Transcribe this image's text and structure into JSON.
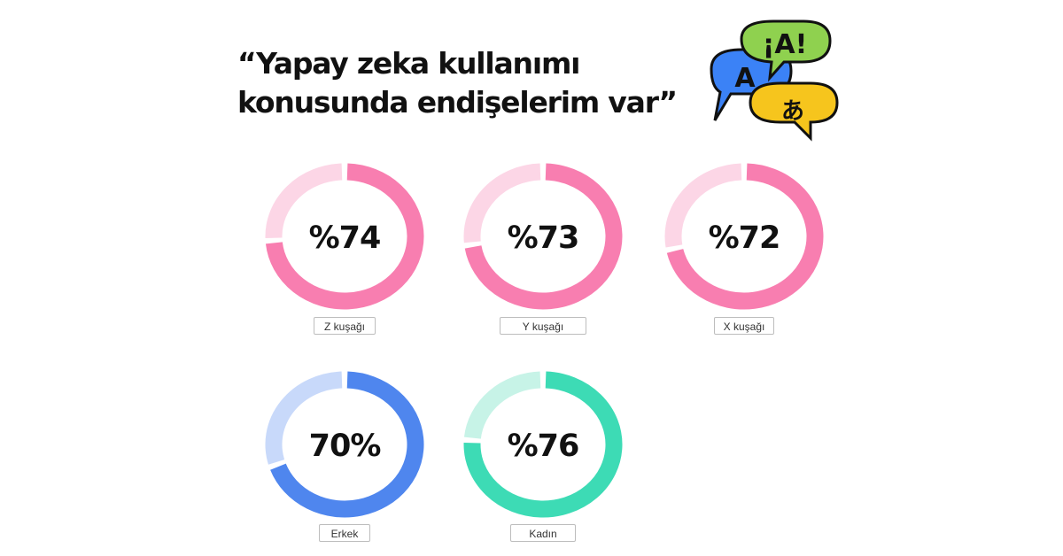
{
  "title_line1": "“Yapay zeka kullanımı",
  "title_line2": "konusunda endişelerim var”",
  "logo": {
    "text_1": "¡A!",
    "text_2": "A",
    "text_3": "あ"
  },
  "chart_data": {
    "type": "pie",
    "style": "donut",
    "title": "“Yapay zeka kullanımı konusunda endişelerim var”",
    "items": [
      {
        "category": "Z kuşağı",
        "value": 74,
        "display": "%74",
        "color": "#f87eb0",
        "track_color": "#fcd6e6"
      },
      {
        "category": "Y kuşağı",
        "value": 73,
        "display": "%73",
        "color": "#f87eb0",
        "track_color": "#fcd6e6"
      },
      {
        "category": "X kuşağı",
        "value": 72,
        "display": "%72",
        "color": "#f87eb0",
        "track_color": "#fcd6e6"
      },
      {
        "category": "Erkek",
        "value": 70,
        "display": "70%",
        "color": "#4f86ee",
        "track_color": "#c8d9fa"
      },
      {
        "category": "Kadın",
        "value": 76,
        "display": "%76",
        "color": "#3ddbb5",
        "track_color": "#c7f3e7"
      }
    ]
  }
}
